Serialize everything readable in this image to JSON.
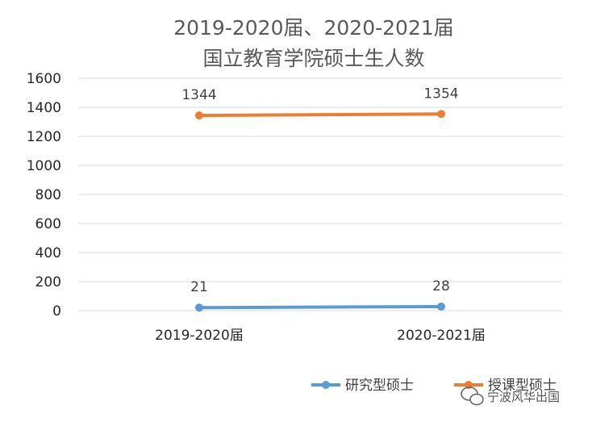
{
  "chart_data": {
    "type": "line",
    "title_line1": "2019-2020届、2020-2021届",
    "title_line2": "国立教育学院硕士生人数",
    "categories": [
      "2019-2020届",
      "2020-2021届"
    ],
    "ylim": [
      0,
      1600
    ],
    "yticks": [
      "0",
      "200",
      "400",
      "600",
      "800",
      "1000",
      "1200",
      "1400",
      "1600"
    ],
    "grid": true,
    "legend_position": "bottom-right",
    "series": [
      {
        "name": "研究型硕士",
        "values": [
          21,
          28
        ],
        "labels": [
          "21",
          "28"
        ],
        "color": "#5B9BD5"
      },
      {
        "name": "授课型硕士",
        "values": [
          1344,
          1354
        ],
        "labels": [
          "1344",
          "1354"
        ],
        "color": "#ED7D31"
      }
    ]
  },
  "watermark": {
    "text": "宁波风华出国",
    "icon": "wechat-bubble-icon"
  }
}
